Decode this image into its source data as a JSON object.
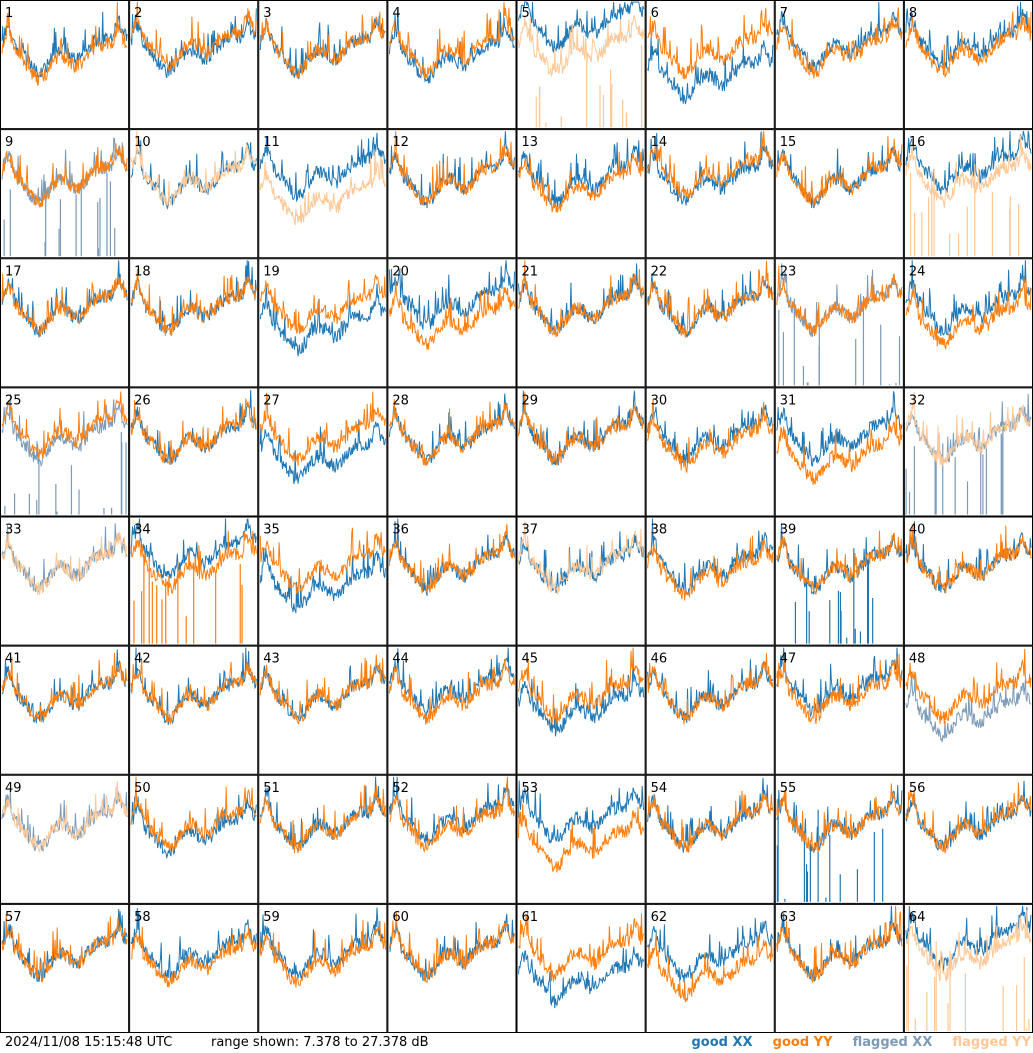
{
  "footer": {
    "timestamp": "2024/11/08 15:15:48 UTC",
    "range": "range shown: 7.378 to 27.378 dB"
  },
  "chart_data": {
    "type": "line",
    "grid": "8x8 small-multiples, one panel per antenna",
    "ylim": [
      7.378,
      27.378
    ],
    "yunit": "dB",
    "legend": {
      "placement": "bottom-right",
      "entries": [
        {
          "label": "good XX",
          "color": "#1f77b4"
        },
        {
          "label": "good YY",
          "color": "#ff7f0e"
        },
        {
          "label": "flagged XX",
          "color": "#7b9bb8"
        },
        {
          "label": "flagged YY",
          "color": "#ffc896"
        }
      ]
    },
    "colors": {
      "good_xx": "#1f77b4",
      "good_yy": "#ff7f0e",
      "flagged_xx": "#7b9bb8",
      "flagged_yy": "#ffc896"
    },
    "panels": [
      {
        "id": 1,
        "xx": "good",
        "yy": "good",
        "xx_offset": 0,
        "yy_offset": -1
      },
      {
        "id": 2,
        "xx": "good",
        "yy": "good",
        "xx_offset": 0,
        "yy_offset": 1
      },
      {
        "id": 3,
        "xx": "good",
        "yy": "good",
        "xx_offset": 0,
        "yy_offset": 0
      },
      {
        "id": 4,
        "xx": "good",
        "yy": "good",
        "xx_offset": -1,
        "yy_offset": 0
      },
      {
        "id": 5,
        "xx": "good",
        "yy": "flagged",
        "yy_spikes": true,
        "xx_offset": 4,
        "yy_offset": 0
      },
      {
        "id": 6,
        "xx": "good",
        "yy": "good",
        "xx_offset": -4,
        "yy_offset": 0
      },
      {
        "id": 7,
        "xx": "good",
        "yy": "good",
        "xx_offset": 1,
        "yy_offset": 0
      },
      {
        "id": 8,
        "xx": "good",
        "yy": "good",
        "xx_offset": 1,
        "yy_offset": 0
      },
      {
        "id": 9,
        "xx": "flagged",
        "yy": "good",
        "xx_spikes": true,
        "xx_offset": 0,
        "yy_offset": 0
      },
      {
        "id": 10,
        "xx": "good",
        "yy": "flagged",
        "xx_offset": 0,
        "yy_offset": 0
      },
      {
        "id": 11,
        "xx": "good",
        "yy": "flagged",
        "xx_offset": 1,
        "yy_offset": -3
      },
      {
        "id": 12,
        "xx": "good",
        "yy": "good",
        "xx_offset": 0,
        "yy_offset": 0
      },
      {
        "id": 13,
        "xx": "good",
        "yy": "good",
        "xx_offset": 0,
        "yy_offset": -1
      },
      {
        "id": 14,
        "xx": "good",
        "yy": "good",
        "xx_offset": 0,
        "yy_offset": 1
      },
      {
        "id": 15,
        "xx": "good",
        "yy": "good",
        "xx_offset": 0,
        "yy_offset": 0
      },
      {
        "id": 16,
        "xx": "good",
        "yy": "flagged",
        "yy_spikes": true,
        "xx_offset": 2,
        "yy_offset": 0
      },
      {
        "id": 17,
        "xx": "good",
        "yy": "good",
        "xx_offset": 0,
        "yy_offset": 0
      },
      {
        "id": 18,
        "xx": "good",
        "yy": "good",
        "xx_offset": 0,
        "yy_offset": 0
      },
      {
        "id": 19,
        "xx": "good",
        "yy": "good",
        "xx_offset": -3,
        "yy_offset": 0
      },
      {
        "id": 20,
        "xx": "good",
        "yy": "good",
        "xx_offset": 1,
        "yy_offset": -2
      },
      {
        "id": 21,
        "xx": "good",
        "yy": "good",
        "xx_offset": 0,
        "yy_offset": 0
      },
      {
        "id": 22,
        "xx": "good",
        "yy": "good",
        "xx_offset": 0,
        "yy_offset": 0
      },
      {
        "id": 23,
        "xx": "flagged",
        "yy": "good",
        "xx_spikes": true,
        "xx_offset": 0,
        "yy_offset": 0
      },
      {
        "id": 24,
        "xx": "good",
        "yy": "good",
        "xx_offset": 0,
        "yy_offset": -2
      },
      {
        "id": 25,
        "xx": "flagged",
        "yy": "good",
        "xx_spikes": true,
        "xx_offset": 0,
        "yy_offset": 1
      },
      {
        "id": 26,
        "xx": "good",
        "yy": "good",
        "xx_offset": 0,
        "yy_offset": 0
      },
      {
        "id": 27,
        "xx": "good",
        "yy": "good",
        "xx_offset": -3,
        "yy_offset": 0
      },
      {
        "id": 28,
        "xx": "good",
        "yy": "good",
        "xx_offset": 0,
        "yy_offset": 0
      },
      {
        "id": 29,
        "xx": "good",
        "yy": "good",
        "xx_offset": 0,
        "yy_offset": 0
      },
      {
        "id": 30,
        "xx": "good",
        "yy": "good",
        "xx_offset": 0,
        "yy_offset": -1
      },
      {
        "id": 31,
        "xx": "good",
        "yy": "good",
        "xx_offset": 0,
        "yy_offset": -3
      },
      {
        "id": 32,
        "xx": "flagged",
        "yy": "flagged",
        "xx_spikes": true,
        "xx_offset": 0,
        "yy_offset": 0
      },
      {
        "id": 33,
        "xx": "flagged",
        "yy": "flagged",
        "xx_offset": 0,
        "yy_offset": 0
      },
      {
        "id": 34,
        "xx": "good",
        "yy": "good",
        "yy_spikes": true,
        "xx_offset": 2,
        "yy_offset": 0
      },
      {
        "id": 35,
        "xx": "good",
        "yy": "good",
        "xx_offset": -3,
        "yy_offset": 0
      },
      {
        "id": 36,
        "xx": "good",
        "yy": "good",
        "xx_offset": 0,
        "yy_offset": 0
      },
      {
        "id": 37,
        "xx": "good",
        "yy": "flagged",
        "xx_offset": 0,
        "yy_offset": 0
      },
      {
        "id": 38,
        "xx": "good",
        "yy": "good",
        "xx_offset": 0,
        "yy_offset": -1
      },
      {
        "id": 39,
        "xx": "good",
        "yy": "good",
        "xx_spikes": true,
        "xx_offset": 0,
        "yy_offset": 0
      },
      {
        "id": 40,
        "xx": "good",
        "yy": "good",
        "xx_offset": 0,
        "yy_offset": 0
      },
      {
        "id": 41,
        "xx": "good",
        "yy": "good",
        "xx_offset": 0,
        "yy_offset": 0
      },
      {
        "id": 42,
        "xx": "good",
        "yy": "good",
        "xx_offset": 0,
        "yy_offset": 0
      },
      {
        "id": 43,
        "xx": "good",
        "yy": "good",
        "xx_offset": 0,
        "yy_offset": 0
      },
      {
        "id": 44,
        "xx": "good",
        "yy": "good",
        "xx_offset": 1,
        "yy_offset": 0
      },
      {
        "id": 45,
        "xx": "good",
        "yy": "good",
        "xx_offset": -2,
        "yy_offset": 0
      },
      {
        "id": 46,
        "xx": "good",
        "yy": "good",
        "xx_offset": 0,
        "yy_offset": 0
      },
      {
        "id": 47,
        "xx": "good",
        "yy": "good",
        "xx_offset": 1,
        "yy_offset": 0
      },
      {
        "id": 48,
        "xx": "flagged",
        "yy": "good",
        "xx_offset": -3,
        "yy_offset": 0
      },
      {
        "id": 49,
        "xx": "flagged",
        "yy": "flagged",
        "xx_offset": 0,
        "yy_offset": 0
      },
      {
        "id": 50,
        "xx": "good",
        "yy": "good",
        "xx_offset": -1,
        "yy_offset": 0
      },
      {
        "id": 51,
        "xx": "good",
        "yy": "good",
        "xx_offset": 0,
        "yy_offset": 0
      },
      {
        "id": 52,
        "xx": "good",
        "yy": "good",
        "xx_offset": 1,
        "yy_offset": 0
      },
      {
        "id": 53,
        "xx": "good",
        "yy": "good",
        "xx_offset": 1,
        "yy_offset": -3
      },
      {
        "id": 54,
        "xx": "good",
        "yy": "good",
        "xx_offset": 0,
        "yy_offset": 0
      },
      {
        "id": 55,
        "xx": "good",
        "yy": "good",
        "xx_spikes": true,
        "xx_offset": 0,
        "yy_offset": 0
      },
      {
        "id": 56,
        "xx": "good",
        "yy": "good",
        "xx_offset": 0,
        "yy_offset": 0
      },
      {
        "id": 57,
        "xx": "good",
        "yy": "good",
        "xx_offset": 0,
        "yy_offset": 0
      },
      {
        "id": 58,
        "xx": "good",
        "yy": "good",
        "xx_offset": 0,
        "yy_offset": -1
      },
      {
        "id": 59,
        "xx": "good",
        "yy": "good",
        "xx_offset": 0,
        "yy_offset": -1
      },
      {
        "id": 60,
        "xx": "good",
        "yy": "good",
        "xx_offset": 0,
        "yy_offset": 0
      },
      {
        "id": 61,
        "xx": "good",
        "yy": "good",
        "xx_offset": -4,
        "yy_offset": 0
      },
      {
        "id": 62,
        "xx": "good",
        "yy": "good",
        "xx_offset": 0,
        "yy_offset": -3
      },
      {
        "id": 63,
        "xx": "good",
        "yy": "good",
        "xx_offset": 0,
        "yy_offset": 0
      },
      {
        "id": 64,
        "xx": "good",
        "yy": "flagged",
        "yy_spikes": true,
        "xx_offset": 2,
        "yy_offset": 0
      }
    ]
  }
}
